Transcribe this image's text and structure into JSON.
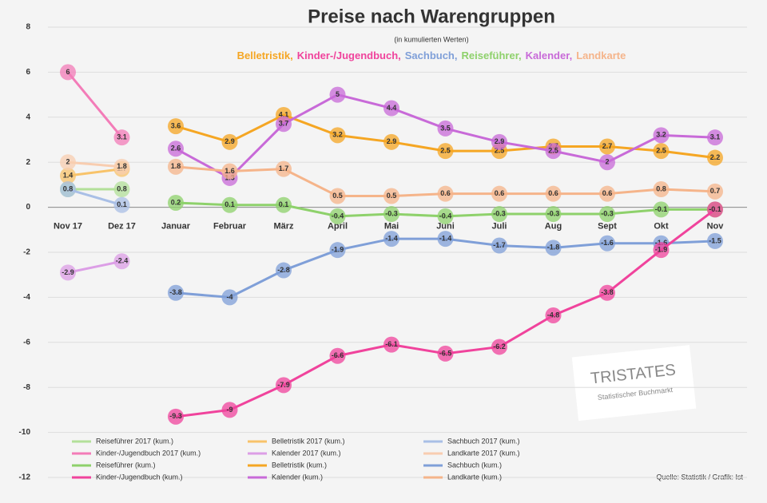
{
  "chart_data": {
    "type": "line",
    "title": "Preise nach Warengruppen",
    "subtitle": "(in kumulierten Werten)",
    "header_legend": [
      {
        "text": "Belletristik,",
        "color": "#f5a623"
      },
      {
        "text": "Kinder-/Jugendbuch,",
        "color": "#f0439c"
      },
      {
        "text": "Sachbuch,",
        "color": "#7f9fd8"
      },
      {
        "text": "Reiseführer,",
        "color": "#8ed16b"
      },
      {
        "text": "Kalender,",
        "color": "#c86ad8"
      },
      {
        "text": "Landkarte",
        "color": "#f5b48a"
      }
    ],
    "categories": [
      "Nov 17",
      "Dez 17",
      "Januar",
      "Februar",
      "März",
      "April",
      "Mai",
      "Juni",
      "Juli",
      "Aug",
      "Sept",
      "Okt",
      "Nov"
    ],
    "ylim": [
      -12,
      8
    ],
    "yticks": [
      -12,
      -10,
      -8,
      -6,
      -4,
      -2,
      0,
      2,
      4,
      6,
      8
    ],
    "grid": true,
    "series": [
      {
        "name": "Reiseführer 2017 (kum.)",
        "color": "#b3e09a",
        "values": [
          0.8,
          0.8,
          null,
          null,
          null,
          null,
          null,
          null,
          null,
          null,
          null,
          null,
          null
        ]
      },
      {
        "name": "Belletristik 2017 (kum.)",
        "color": "#f8c36a",
        "values": [
          1.4,
          1.7,
          null,
          null,
          null,
          null,
          null,
          null,
          null,
          null,
          null,
          null,
          null
        ]
      },
      {
        "name": "Sachbuch 2017 (kum.)",
        "color": "#a9bfe6",
        "values": [
          0.8,
          0.1,
          null,
          null,
          null,
          null,
          null,
          null,
          null,
          null,
          null,
          null,
          null
        ]
      },
      {
        "name": "Kinder-/Jugendbuch 2017 (kum.)",
        "color": "#f37cb8",
        "values": [
          6.0,
          3.1,
          null,
          null,
          null,
          null,
          null,
          null,
          null,
          null,
          null,
          null,
          null
        ]
      },
      {
        "name": "Kalender 2017 (kum.)",
        "color": "#dc9ee6",
        "values": [
          -2.9,
          -2.4,
          null,
          null,
          null,
          null,
          null,
          null,
          null,
          null,
          null,
          null,
          null
        ]
      },
      {
        "name": "Landkarte 2017 (kum.)",
        "color": "#f8cdb0",
        "values": [
          2.0,
          1.8,
          null,
          null,
          null,
          null,
          null,
          null,
          null,
          null,
          null,
          null,
          null
        ]
      },
      {
        "name": "Reiseführer (kum.)",
        "color": "#8ed16b",
        "values": [
          null,
          null,
          0.2,
          0.1,
          0.1,
          -0.4,
          -0.3,
          -0.4,
          -0.3,
          -0.3,
          -0.3,
          -0.1,
          -0.1
        ]
      },
      {
        "name": "Belletristik (kum.)",
        "color": "#f5a623",
        "values": [
          null,
          null,
          3.6,
          2.9,
          4.1,
          3.2,
          2.9,
          2.5,
          2.5,
          2.7,
          2.7,
          2.5,
          2.2
        ]
      },
      {
        "name": "Sachbuch (kum.)",
        "color": "#7f9fd8",
        "values": [
          null,
          null,
          -3.8,
          -4.0,
          -2.8,
          -1.9,
          -1.4,
          -1.4,
          -1.7,
          -1.8,
          -1.6,
          -1.6,
          -1.5
        ]
      },
      {
        "name": "Kinder-/Jugendbuch (kum.)",
        "color": "#f0439c",
        "values": [
          null,
          null,
          -9.3,
          -9.0,
          -7.9,
          -6.6,
          -6.1,
          -6.5,
          -6.2,
          -4.8,
          -3.8,
          -1.9,
          -0.1
        ]
      },
      {
        "name": "Kalender (kum.)",
        "color": "#c86ad8",
        "values": [
          null,
          null,
          2.6,
          1.3,
          3.7,
          5.0,
          4.4,
          3.5,
          2.9,
          2.5,
          2.0,
          3.2,
          3.1
        ]
      },
      {
        "name": "Landkarte (kum.)",
        "color": "#f5b48a",
        "values": [
          null,
          null,
          1.8,
          1.6,
          1.7,
          0.5,
          0.5,
          0.6,
          0.6,
          0.6,
          0.6,
          0.8,
          0.7
        ]
      }
    ],
    "logo_text": "TRISTATES",
    "logo_subtext": "Statistischer Buchmarkt",
    "source": "Quelle: Statistik / Grafik: Ist"
  }
}
